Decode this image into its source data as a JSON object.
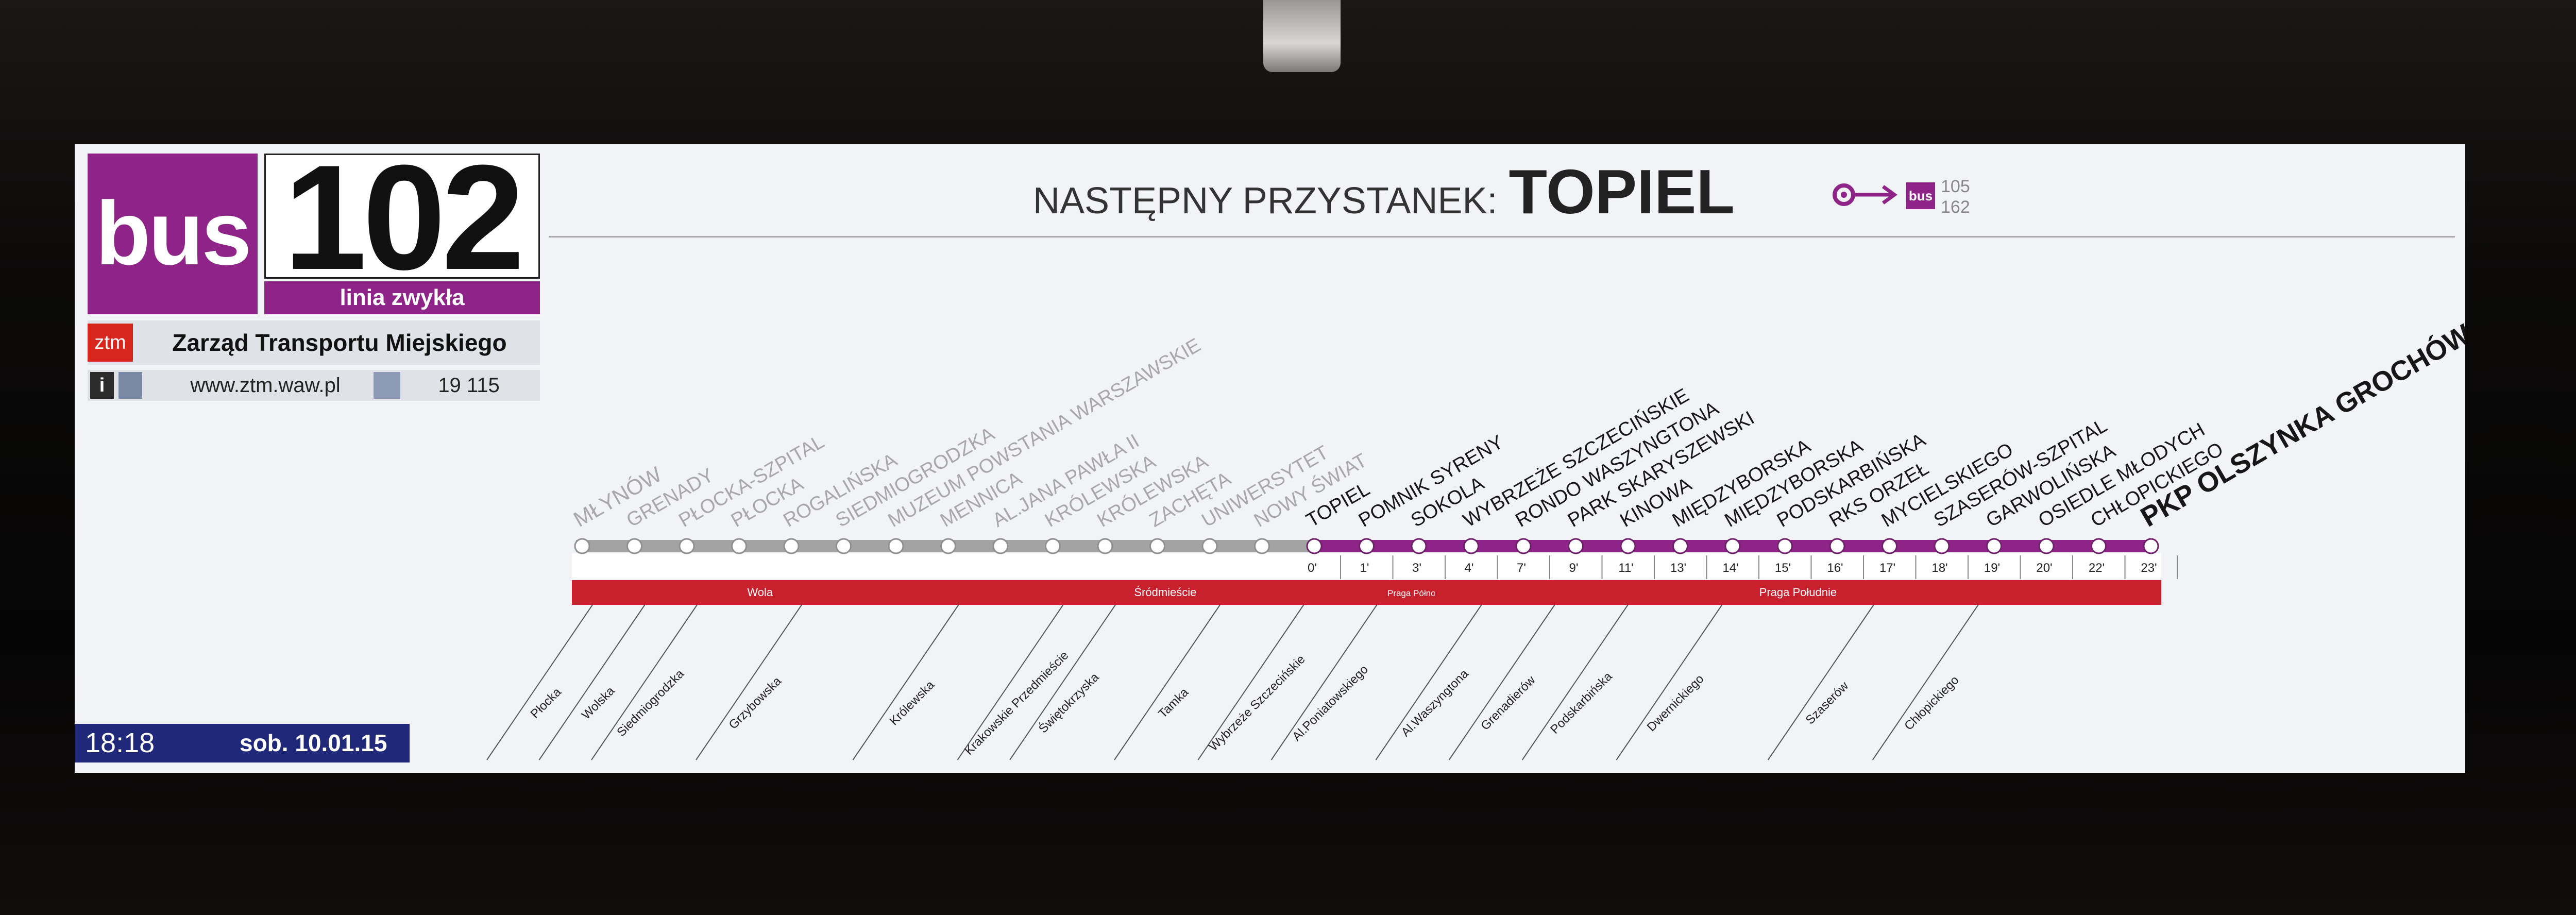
{
  "line": {
    "mode_label": "bus",
    "number": "102",
    "type_label": "linia zwykła"
  },
  "operator": {
    "logo_text": "ztm",
    "name": "Zarząd Transportu Miejskiego",
    "website": "www.ztm.waw.pl",
    "phone": "19 115"
  },
  "next_stop": {
    "label": "NASTĘPNY PRZYSTANEK:",
    "name": "TOPIEL",
    "transfer_mode": "bus",
    "transfer_lines": [
      "105",
      "162"
    ]
  },
  "clock": {
    "time": "18:18",
    "date": "sob. 10.01.15"
  },
  "colors": {
    "line_purple": "#8e2488",
    "district_red": "#c8202c",
    "passed_gray": "#a3a3a3",
    "clock_blue": "#20287a",
    "ztm_red": "#d7261e"
  },
  "route": {
    "stops": [
      {
        "name": "MŁYNÓW",
        "status": "passed"
      },
      {
        "name": "GRENADY",
        "status": "passed"
      },
      {
        "name": "PŁOCKA-SZPITAL",
        "status": "passed"
      },
      {
        "name": "PŁOCKA",
        "status": "passed"
      },
      {
        "name": "ROGALIŃSKA",
        "status": "passed"
      },
      {
        "name": "SIEDMIOGRODZKA",
        "status": "passed"
      },
      {
        "name": "MUZEUM POWSTANIA WARSZAWSKIE",
        "status": "passed"
      },
      {
        "name": "MENNICA",
        "status": "passed"
      },
      {
        "name": "AL.JANA PAWŁA II",
        "status": "passed"
      },
      {
        "name": "KRÓLEWSKA",
        "status": "passed"
      },
      {
        "name": "KRÓLEWSKA",
        "status": "passed"
      },
      {
        "name": "ZACHĘTA",
        "status": "passed"
      },
      {
        "name": "UNIWERSYTET",
        "status": "passed"
      },
      {
        "name": "NOWY ŚWIAT",
        "status": "passed"
      },
      {
        "name": "TOPIEL",
        "status": "next",
        "time": "0'"
      },
      {
        "name": "POMNIK SYRENY",
        "status": "upcoming",
        "time": "1'"
      },
      {
        "name": "SOKOLA",
        "status": "upcoming",
        "time": "3'"
      },
      {
        "name": "WYBRZEŻE SZCZECIŃSKIE",
        "status": "upcoming",
        "time": "4'"
      },
      {
        "name": "RONDO WASZYNGTONA",
        "status": "upcoming",
        "time": "7'"
      },
      {
        "name": "PARK SKARYSZEWSKI",
        "status": "upcoming",
        "time": "9'"
      },
      {
        "name": "KINOWA",
        "status": "upcoming",
        "time": "11'"
      },
      {
        "name": "MIĘDZYBORSKA",
        "status": "upcoming",
        "time": "13'"
      },
      {
        "name": "MIĘDZYBORSKA",
        "status": "upcoming",
        "time": "14'"
      },
      {
        "name": "PODSKARBIŃSKA",
        "status": "upcoming",
        "time": "15'"
      },
      {
        "name": "RKS ORZEŁ",
        "status": "upcoming",
        "time": "16'"
      },
      {
        "name": "MYCIELSKIEGO",
        "status": "upcoming",
        "time": "17'"
      },
      {
        "name": "SZASERÓW-SZPITAL",
        "status": "upcoming",
        "time": "18'"
      },
      {
        "name": "GARWOLIŃSKA",
        "status": "upcoming",
        "time": "19'"
      },
      {
        "name": "OSIEDLE MŁODYCH",
        "status": "upcoming",
        "time": "20'"
      },
      {
        "name": "CHŁOPICKIEGO",
        "status": "upcoming",
        "time": "22'"
      },
      {
        "name": "PKP OLSZYNKA GROCHÓW",
        "status": "terminus",
        "time": "23'"
      }
    ],
    "districts": [
      {
        "name": "Wola",
        "from": 0,
        "to": 7
      },
      {
        "name": "Śródmieście",
        "from": 7,
        "to": 15.5
      },
      {
        "name": "Praga Północ",
        "from": 15.5,
        "to": 16.5
      },
      {
        "name": "Praga Południe",
        "from": 16.5,
        "to": 30
      }
    ],
    "streets": [
      {
        "name": "Płocka",
        "at": 0
      },
      {
        "name": "Wolska",
        "at": 1
      },
      {
        "name": "Siedmiogrodzka",
        "at": 2
      },
      {
        "name": "Grzybowska",
        "at": 4
      },
      {
        "name": "Królewska",
        "at": 7
      },
      {
        "name": "Krakowskie Przedmieście",
        "at": 9
      },
      {
        "name": "Świętokrzyska",
        "at": 10
      },
      {
        "name": "Tamka",
        "at": 12
      },
      {
        "name": "Wybrzeże Szczecińskie",
        "at": 13.6
      },
      {
        "name": "Al.Poniatowskiego",
        "at": 15
      },
      {
        "name": "Al.Waszyngtona",
        "at": 17
      },
      {
        "name": "Grenadierów",
        "at": 18.4
      },
      {
        "name": "Podskarbińska",
        "at": 19.8
      },
      {
        "name": "Dwernickiego",
        "at": 21.6
      },
      {
        "name": "Szaserów",
        "at": 24.5
      },
      {
        "name": "Chłopickiego",
        "at": 26.5
      }
    ]
  }
}
